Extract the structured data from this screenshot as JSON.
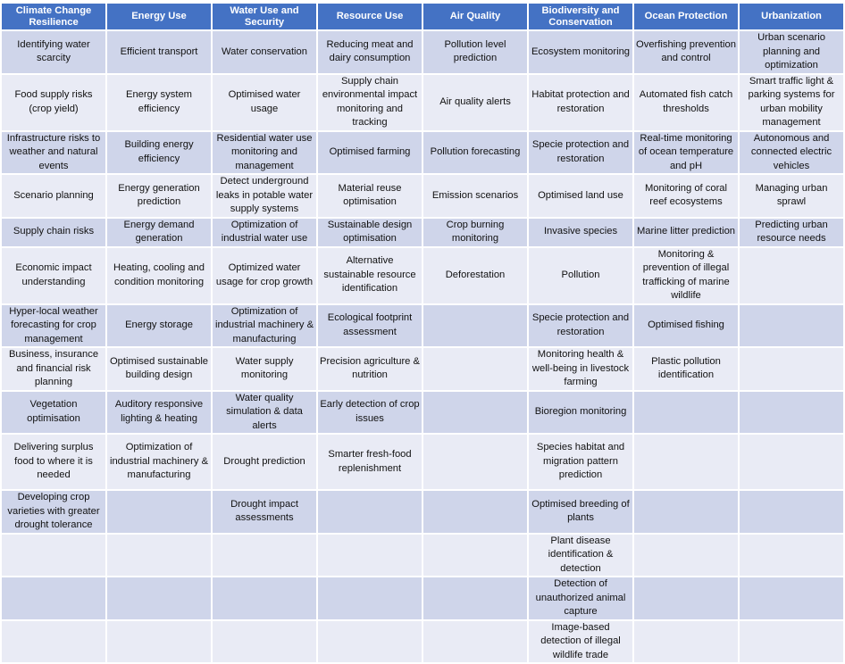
{
  "headers": [
    "Climate Change Resilience",
    "Energy Use",
    "Water Use and Security",
    "Resource Use",
    "Air Quality",
    "Biodiversity and Conservation",
    "Ocean Protection",
    "Urbanization"
  ],
  "rows": [
    [
      "Identifying water scarcity",
      "Efficient transport",
      "Water conservation",
      "Reducing meat and dairy consumption",
      "Pollution level prediction",
      "Ecosystem monitoring",
      "Overfishing prevention and control",
      "Urban scenario planning and optimization"
    ],
    [
      "Food supply risks (crop yield)",
      "Energy system efficiency",
      "Optimised water usage",
      "Supply chain environmental impact monitoring and tracking",
      "Air quality alerts",
      "Habitat protection and restoration",
      "Automated fish catch thresholds",
      "Smart traffic light & parking systems for urban mobility management"
    ],
    [
      "Infrastructure risks to weather and natural events",
      "Building energy efficiency",
      "Residential water use monitoring and management",
      "Optimised farming",
      "Pollution forecasting",
      "Specie protection and restoration",
      "Real-time monitoring of ocean temperature and pH",
      "Autonomous and connected electric vehicles"
    ],
    [
      "Scenario planning",
      "Energy generation prediction",
      "Detect underground leaks in potable water supply systems",
      "Material reuse optimisation",
      "Emission scenarios",
      "Optimised land use",
      "Monitoring of coral reef ecosystems",
      "Managing urban sprawl"
    ],
    [
      "Supply chain risks",
      "Energy demand generation",
      "Optimization of industrial water use",
      "Sustainable design optimisation",
      "Crop burning monitoring",
      "Invasive species",
      "Marine litter prediction",
      "Predicting urban resource needs"
    ],
    [
      "Economic impact understanding",
      "Heating, cooling and condition monitoring",
      "Optimized water usage for crop growth",
      "Alternative sustainable resource identification",
      "Deforestation",
      "Pollution",
      "Monitoring & prevention of illegal trafficking of marine wildlife",
      ""
    ],
    [
      "Hyper-local weather forecasting for crop management",
      "Energy storage",
      "Optimization of industrial machinery & manufacturing",
      "Ecological footprint assessment",
      "",
      "Specie protection and restoration",
      "Optimised fishing",
      ""
    ],
    [
      "Business, insurance and financial risk planning",
      "Optimised sustainable building design",
      "Water supply monitoring",
      "Precision agriculture & nutrition",
      "",
      "Monitoring health & well-being in livestock farming",
      "Plastic pollution identification",
      ""
    ],
    [
      "Vegetation optimisation",
      "Auditory responsive lighting & heating",
      "Water quality simulation & data alerts",
      "Early detection of crop issues",
      "",
      "Bioregion monitoring",
      "",
      ""
    ],
    [
      "Delivering surplus food to where it is needed",
      "Optimization of industrial machinery & manufacturing",
      "Drought prediction",
      "Smarter fresh-food replenishment",
      "",
      "Species habitat and migration pattern prediction",
      "",
      ""
    ],
    [
      "Developing crop varieties with greater drought tolerance",
      "",
      "Drought impact assessments",
      "",
      "",
      "Optimised breeding of plants",
      "",
      ""
    ],
    [
      "",
      "",
      "",
      "",
      "",
      "Plant disease identification & detection",
      "",
      ""
    ],
    [
      "",
      "",
      "",
      "",
      "",
      "Detection of unauthorized animal capture",
      "",
      ""
    ],
    [
      "",
      "",
      "",
      "",
      "",
      "Image-based detection of illegal wildlife trade",
      "",
      ""
    ]
  ],
  "colors": {
    "header": "#4472C4",
    "row_dark": "#CFD5EA",
    "row_light": "#E9EBF5"
  }
}
